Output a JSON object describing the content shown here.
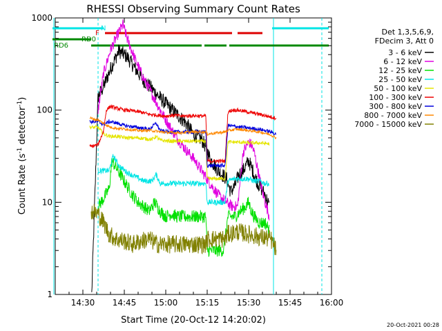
{
  "chart_data": {
    "type": "line",
    "title": "RHESSI Observing Summary Count Rates",
    "xlabel": "Start Time (20-Oct-12 14:20:02)",
    "ylabel": "Count Rate (s⁻¹ detector⁻¹)",
    "ylabel_main": "Count Rate (s",
    "ylabel_mid": " detector",
    "ylabel_end": ")",
    "ylabel_sup": "-1",
    "x_unit": "minutes after 14:20",
    "xlim": [
      0,
      100
    ],
    "ylim": [
      1,
      1000
    ],
    "yscale": "log",
    "x_ticks": [
      {
        "label": "14:30",
        "v": 10
      },
      {
        "label": "14:45",
        "v": 25
      },
      {
        "label": "15:00",
        "v": 40
      },
      {
        "label": "15:15",
        "v": 55
      },
      {
        "label": "15:30",
        "v": 70
      },
      {
        "label": "15:45",
        "v": 85
      },
      {
        "label": "16:00",
        "v": 100
      }
    ],
    "y_ticks": [
      {
        "label": "1",
        "v": 1
      },
      {
        "label": "10",
        "v": 10
      },
      {
        "label": "100",
        "v": 100
      },
      {
        "label": "1000",
        "v": 1000
      }
    ],
    "legend_header": [
      "Det 1,3,5,6,9,",
      "FDecim 3, Att 0"
    ],
    "legend_position": "right",
    "timestamp": "20-Oct-2021 00:28",
    "flags": [
      {
        "name": "N",
        "color": "#00e5e5",
        "segments": [
          [
            -1,
            17.5
          ],
          [
            78.5,
            99
          ]
        ]
      },
      {
        "name": "F",
        "color": "#dd0000",
        "segments": [
          [
            18,
            64
          ],
          [
            66,
            75
          ]
        ]
      },
      {
        "name": "RD0",
        "color": "#008800",
        "segments": [
          [
            -1,
            13
          ]
        ]
      },
      {
        "name": "RD6",
        "color": "#008800",
        "segments": [
          [
            13,
            53
          ],
          [
            54,
            62
          ],
          [
            63,
            99
          ]
        ]
      }
    ],
    "vlines": [
      {
        "x": -0.5,
        "color": "#00e5e5",
        "style": "solid"
      },
      {
        "x": 15.5,
        "color": "#00e5e5",
        "style": "dashed"
      },
      {
        "x": 79.0,
        "color": "#00e5e5",
        "style": "solid"
      },
      {
        "x": 96.5,
        "color": "#00e5e5",
        "style": "dashed"
      }
    ],
    "series": [
      {
        "name": "3 - 6 keV",
        "color": "#000000",
        "noise": 0.08,
        "x": [
          13.2,
          15.5,
          17.5,
          20,
          23,
          26,
          29,
          32,
          35,
          38,
          41,
          44,
          47,
          50,
          53,
          54.5,
          56,
          59,
          62,
          63.5,
          65,
          66.5,
          68,
          69,
          70,
          71,
          72,
          73,
          74,
          76,
          77.5
        ],
        "y": [
          1,
          140,
          180,
          280,
          440,
          380,
          280,
          210,
          170,
          135,
          110,
          90,
          74,
          55,
          48,
          40,
          30,
          22,
          18,
          13,
          15,
          20,
          22,
          25,
          28,
          24,
          20,
          17,
          15,
          12,
          9
        ]
      },
      {
        "name": "6 - 12 keV",
        "color": "#e000e0",
        "noise": 0.06,
        "x": [
          15.5,
          17.5,
          20,
          23,
          24.5,
          26,
          29,
          32,
          35,
          38,
          41,
          44,
          47,
          50,
          53,
          56,
          59,
          62,
          64,
          66,
          68,
          70,
          71,
          72,
          73,
          74,
          75,
          76,
          77.5
        ],
        "y": [
          100,
          250,
          450,
          700,
          850,
          600,
          350,
          220,
          150,
          100,
          70,
          50,
          38,
          30,
          22,
          16,
          12,
          10,
          9,
          9,
          35,
          45,
          42,
          35,
          25,
          18,
          13,
          10,
          7
        ]
      },
      {
        "name": "12 - 25 keV",
        "color": "#00e000",
        "noise": 0.07,
        "x": [
          15.5,
          17.5,
          19.5,
          20.5,
          22,
          24,
          26,
          28,
          30,
          32,
          34,
          36,
          38,
          40,
          42,
          44,
          46,
          48,
          50,
          52,
          54.5,
          55,
          58,
          61,
          62.5,
          65,
          67,
          69,
          70,
          71,
          72,
          74,
          76,
          77.5
        ],
        "y": [
          9,
          11,
          14,
          28,
          24,
          19,
          15,
          12,
          10,
          9,
          8,
          10,
          8,
          7,
          7.5,
          7,
          7,
          7,
          7,
          7,
          7,
          3,
          3,
          3,
          7,
          7,
          8,
          9,
          10,
          8,
          7,
          6,
          6,
          5
        ]
      },
      {
        "name": "25 - 50 keV",
        "color": "#00e5e5",
        "noise": 0.03,
        "x": [
          15.5,
          17.5,
          19.5,
          21,
          23,
          26,
          29,
          32,
          35,
          36.5,
          38,
          41,
          44,
          47,
          50,
          54.5,
          55,
          61.5,
          62.5,
          65,
          68,
          70,
          72,
          74,
          76,
          77.5
        ],
        "y": [
          22,
          22,
          22,
          32,
          25,
          21,
          19,
          17,
          17,
          20,
          16,
          16,
          16,
          16,
          16,
          16,
          10,
          10,
          17,
          18,
          18,
          18,
          17,
          17,
          16,
          16
        ]
      },
      {
        "name": "50 - 100 keV",
        "color": "#e5e500",
        "noise": 0.02,
        "x": [
          12.5,
          15.5,
          17.5,
          19.5,
          22,
          26,
          30,
          35,
          36.5,
          38,
          42,
          46,
          50,
          54.5,
          55,
          61.5,
          62.5,
          66,
          70,
          74,
          77.5
        ],
        "y": [
          65,
          65,
          55,
          52,
          52,
          50,
          50,
          48,
          52,
          47,
          46,
          46,
          46,
          46,
          18,
          18,
          45,
          45,
          44,
          44,
          43
        ]
      },
      {
        "name": "100 - 300 keV",
        "color": "#ee0000",
        "noise": 0.02,
        "x": [
          12.5,
          15.5,
          16.5,
          17.5,
          18.5,
          20,
          22,
          25,
          28,
          31,
          34,
          37,
          40,
          43,
          46,
          50,
          54.5,
          55,
          61.5,
          62.5,
          64,
          66,
          70,
          74,
          77.5,
          80
        ],
        "y": [
          40,
          42,
          50,
          60,
          100,
          110,
          105,
          100,
          98,
          95,
          90,
          88,
          86,
          88,
          86,
          87,
          86,
          28,
          28,
          95,
          100,
          100,
          95,
          90,
          85,
          82
        ]
      },
      {
        "name": "300 - 800 keV",
        "color": "#0000dd",
        "noise": 0.02,
        "x": [
          12.5,
          15.5,
          17.5,
          19.5,
          22,
          25,
          28,
          31,
          34,
          36.5,
          38,
          41,
          45,
          50,
          54.5,
          55,
          61.5,
          62.5,
          66,
          70,
          74,
          78,
          80
        ],
        "y": [
          75,
          75,
          70,
          75,
          73,
          68,
          66,
          64,
          62,
          72,
          60,
          58,
          58,
          58,
          58,
          25,
          25,
          68,
          66,
          64,
          62,
          58,
          55
        ]
      },
      {
        "name": "800 - 7000 keV",
        "color": "#ff8800",
        "noise": 0.015,
        "x": [
          12.5,
          15.5,
          17.5,
          20,
          23,
          26,
          30,
          35,
          38,
          42,
          46,
          50,
          54.5,
          55,
          61.5,
          62.5,
          66,
          70,
          74,
          78,
          80
        ],
        "y": [
          82,
          78,
          72,
          65,
          63,
          62,
          60,
          60,
          58,
          57,
          57,
          58,
          58,
          55,
          58,
          60,
          62,
          60,
          58,
          54,
          50
        ]
      },
      {
        "name": "7000 - 15000 keV",
        "color": "#808000",
        "noise": 0.1,
        "x": [
          13,
          15.5,
          17.5,
          19.5,
          22,
          25,
          28,
          31,
          34,
          37,
          40,
          43,
          46,
          50,
          54.5,
          55,
          58,
          61.5,
          62.5,
          66,
          70,
          74,
          78,
          80
        ],
        "y": [
          8,
          7.5,
          6,
          4.5,
          4,
          3.8,
          3.5,
          3.8,
          4,
          3.5,
          3.5,
          3.5,
          3.5,
          3.5,
          3.5,
          4,
          4,
          4,
          4.5,
          4.8,
          4.5,
          4.2,
          4,
          3
        ]
      }
    ]
  }
}
